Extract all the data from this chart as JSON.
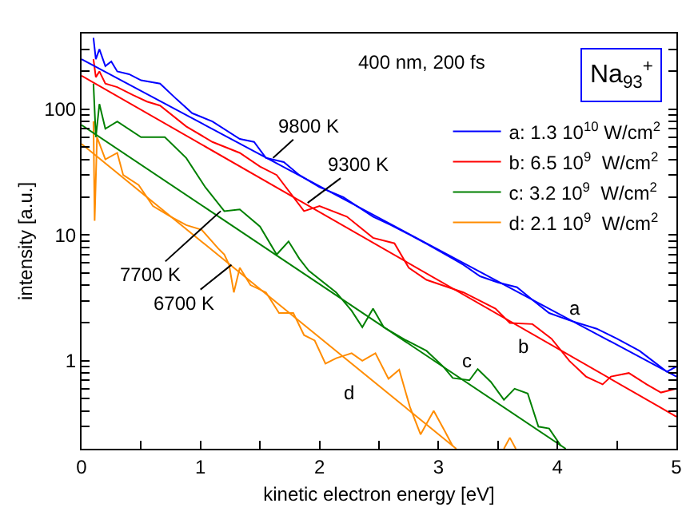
{
  "chart_data": {
    "type": "line",
    "xlabel": "kinetic electron energy [eV]",
    "ylabel": "intensity [a.u.]",
    "log": "y",
    "grid": false,
    "legend": "top right",
    "marker": "none",
    "line_style": "solid",
    "xlim": [
      0,
      5
    ],
    "ylim": [
      0.2,
      400
    ],
    "xticks": [
      0,
      {
        "value": 0.5,
        "label": null
      },
      1,
      {
        "value": 1.5,
        "label": null
      },
      2,
      {
        "value": 2.5,
        "label": null
      },
      3,
      {
        "value": 3.5,
        "label": null
      },
      4,
      {
        "value": 4.5,
        "label": null
      },
      5
    ],
    "yticks": [
      {
        "value": 0.2,
        "label": null
      },
      {
        "value": 0.3,
        "label": null
      },
      {
        "value": 0.4,
        "label": null
      },
      {
        "value": 0.5,
        "label": null
      },
      {
        "value": 0.6,
        "label": null
      },
      {
        "value": 0.7,
        "label": null
      },
      {
        "value": 0.8,
        "label": null
      },
      {
        "value": 0.9,
        "label": null
      },
      1,
      {
        "value": 2,
        "label": null
      },
      {
        "value": 3,
        "label": null
      },
      {
        "value": 4,
        "label": null
      },
      {
        "value": 5,
        "label": null
      },
      {
        "value": 6,
        "label": null
      },
      {
        "value": 7,
        "label": null
      },
      {
        "value": 8,
        "label": null
      },
      {
        "value": 9,
        "label": null
      },
      10,
      {
        "value": 20,
        "label": null
      },
      {
        "value": 30,
        "label": null
      },
      {
        "value": 40,
        "label": null
      },
      {
        "value": 50,
        "label": null
      },
      {
        "value": 60,
        "label": null
      },
      {
        "value": 70,
        "label": null
      },
      {
        "value": 80,
        "label": null
      },
      {
        "value": 90,
        "label": null
      },
      100,
      {
        "value": 200,
        "label": null
      },
      {
        "value": 300,
        "label": null
      },
      {
        "value": 400,
        "label": null
      }
    ],
    "series": [
      {
        "name": "a: 1.3 10$^{10}$ W/cm$^{2}$",
        "color": "#0000ff",
        "x": [
          0.1,
          0.12,
          0.15,
          0.2,
          0.25,
          0.3,
          0.4,
          0.5,
          0.66,
          0.8,
          0.93,
          1.1,
          1.33,
          1.45,
          1.55,
          1.7,
          1.83,
          2.0,
          2.2,
          2.45,
          2.6,
          2.72,
          2.9,
          3.12,
          3.21,
          3.35,
          3.5,
          3.66,
          3.8,
          3.93,
          4.1,
          4.33,
          4.5,
          4.69,
          4.8,
          4.92,
          5.0
        ],
        "values": [
          370,
          250,
          300,
          220,
          240,
          200,
          190,
          170,
          160,
          120,
          93,
          80,
          58,
          55,
          41,
          38,
          30,
          24,
          20,
          14,
          12,
          10.5,
          8.5,
          6.5,
          5.8,
          4.7,
          4.2,
          3.85,
          3.0,
          2.4,
          2.1,
          1.8,
          1.5,
          1.2,
          1.0,
          0.82,
          0.9
        ]
      },
      {
        "name": "b: 6.5 10$^{9}$  W/cm$^{2}$",
        "color": "#ff0000",
        "x": [
          0.1,
          0.12,
          0.15,
          0.2,
          0.3,
          0.43,
          0.55,
          0.66,
          0.88,
          1.1,
          1.33,
          1.5,
          1.64,
          1.87,
          2.0,
          2.23,
          2.45,
          2.63,
          2.75,
          2.9,
          3.21,
          3.48,
          3.6,
          3.79,
          3.95,
          4.1,
          4.24,
          4.38,
          4.45,
          4.6,
          4.75,
          4.87,
          5.0
        ],
        "values": [
          250,
          180,
          200,
          160,
          150,
          130,
          115,
          107,
          73,
          55,
          45,
          35,
          30,
          15.5,
          17,
          14,
          9.5,
          8.6,
          5.5,
          4.4,
          3.5,
          2.6,
          2.0,
          1.96,
          1.5,
          1.0,
          0.75,
          0.65,
          0.75,
          0.8,
          0.65,
          0.56,
          0.6
        ]
      },
      {
        "name": "c: 3.2 10$^{9}$  W/cm$^{2}$",
        "color": "#008000",
        "x": [
          0.1,
          0.12,
          0.15,
          0.2,
          0.3,
          0.5,
          0.7,
          0.88,
          1.04,
          1.2,
          1.33,
          1.5,
          1.64,
          1.74,
          1.83,
          1.91,
          2.14,
          2.27,
          2.36,
          2.45,
          2.54,
          2.72,
          2.9,
          3.04,
          3.12,
          3.26,
          3.33,
          3.44,
          3.55,
          3.64,
          3.75,
          3.84,
          3.93,
          4.03
        ],
        "values": [
          160,
          60,
          110,
          70,
          80,
          60,
          60,
          41,
          24,
          15.5,
          16,
          11.7,
          7,
          8.9,
          6.5,
          5.2,
          3.5,
          2.5,
          1.85,
          2.6,
          1.85,
          1.47,
          1.2,
          0.9,
          0.73,
          0.7,
          0.86,
          0.68,
          0.49,
          0.6,
          0.55,
          0.3,
          0.29,
          0.21
        ]
      },
      {
        "name": "d: 2.1 10$^{9}$  W/cm$^{2}$",
        "color": "#ff8c00",
        "x": [
          0.1,
          0.11,
          0.13,
          0.2,
          0.3,
          0.35,
          0.48,
          0.6,
          0.75,
          0.88,
          1.01,
          1.15,
          1.2,
          1.24,
          1.28,
          1.33,
          1.42,
          1.55,
          1.66,
          1.78,
          1.87,
          1.96,
          2.05,
          2.14,
          2.27,
          2.36,
          2.47,
          2.58,
          2.67,
          2.76,
          2.85,
          2.96,
          3.05,
          3.12,
          3.3,
          3.55,
          3.6,
          3.65
        ],
        "values": [
          80,
          13,
          60,
          40,
          45,
          30,
          25,
          17,
          14,
          12,
          11,
          7.8,
          7,
          5.8,
          3.5,
          5.5,
          4,
          3.5,
          2.4,
          2.4,
          1.6,
          1.45,
          0.95,
          1.05,
          1.15,
          1.0,
          1.15,
          0.72,
          0.85,
          0.43,
          0.26,
          0.4,
          0.28,
          0.21,
          null,
          0.2,
          0.245,
          0.2
        ]
      },
      {
        "type": "line",
        "color": "#0000ff",
        "x": [
          0,
          5
        ],
        "values": [
          250,
          0.75
        ]
      },
      {
        "type": "line",
        "color": "#ff0000",
        "x": [
          0,
          5
        ],
        "values": [
          185,
          0.36
        ]
      },
      {
        "type": "line",
        "color": "#008000",
        "x": [
          0,
          4.07
        ],
        "values": [
          75,
          0.2
        ]
      },
      {
        "type": "line",
        "color": "#ff8c00",
        "x": [
          0,
          3.15
        ],
        "values": [
          53,
          0.2
        ]
      }
    ],
    "annotations": [
      "400 nm, 200 fs",
      "Na$_{93}$$^{+}$",
      {
        "text": "9800 K",
        "x": 1.61,
        "y": 41
      },
      {
        "text": "9300 K",
        "x": 1.9,
        "y": 18
      },
      {
        "text": "7700 K",
        "x": 1.17,
        "y": 15.5
      },
      {
        "text": "6700 K",
        "x": 1.26,
        "y": 5.8
      },
      "a",
      "b",
      "c",
      "d"
    ]
  }
}
